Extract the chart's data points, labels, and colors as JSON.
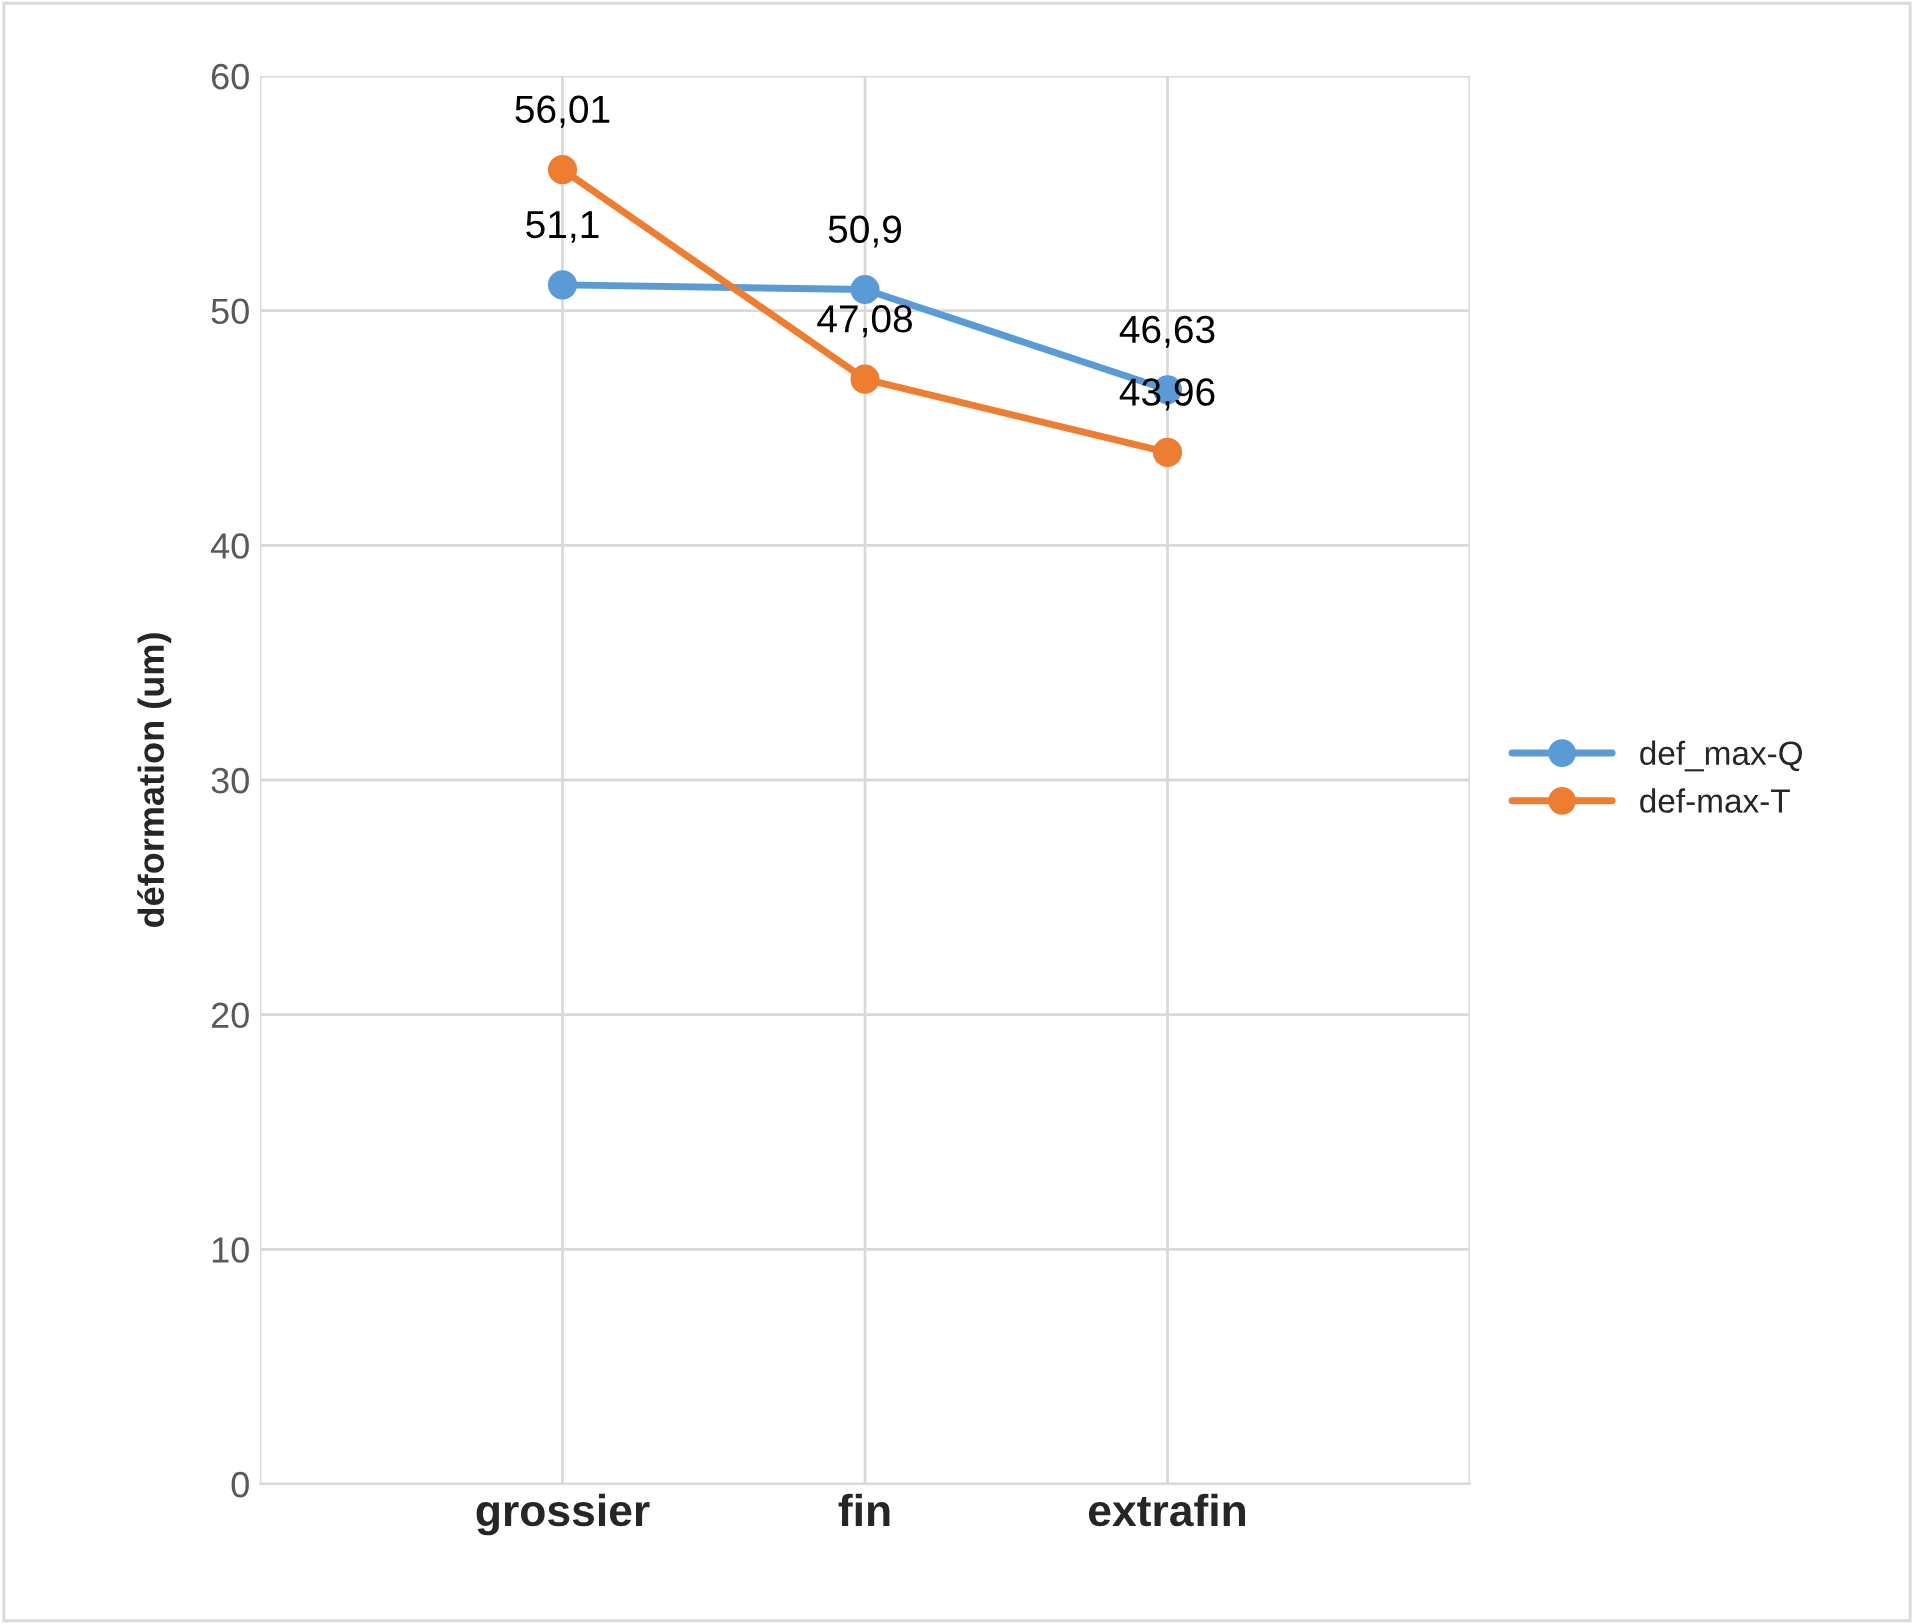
{
  "chart_data": {
    "type": "line",
    "ylabel": "déformation (um)",
    "categories": [
      null,
      "grossier",
      "fin",
      "extrafin",
      null
    ],
    "series": [
      {
        "name": "def_max-Q",
        "color": "#5b9bd5",
        "values": [
          null,
          51.1,
          50.9,
          46.63,
          null
        ],
        "value_labels": [
          null,
          "51,1",
          "50,9",
          "46,63",
          null
        ]
      },
      {
        "name": "def-max-T",
        "color": "#ed7d31",
        "values": [
          null,
          56.01,
          47.08,
          43.96,
          null
        ],
        "value_labels": [
          null,
          "56,01",
          "47,08",
          "43,96",
          null
        ]
      }
    ],
    "ylim": [
      0,
      60
    ],
    "yticks": [
      0,
      10,
      20,
      30,
      40,
      50,
      60
    ],
    "grid": true,
    "legend": "right",
    "marker": "circle",
    "line_style": "solid"
  }
}
